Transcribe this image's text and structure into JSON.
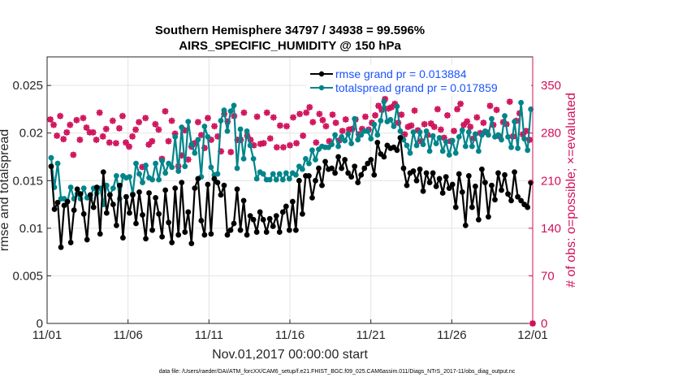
{
  "chart_data": {
    "type": "line",
    "title": "Southern Hemisphere 34797 / 34938 = 99.596%",
    "subtitle": "AIRS_SPECIFIC_HUMIDITY @ 150 hPa",
    "xlabel": "Nov.01,2017 00:00:00 start",
    "ylabel_left": "rmse and totalspread",
    "ylabel_right": "# of obs: o=possible; ×=evaluated",
    "footer": "data file: /Users/raeder/DAI/ATM_forcXX/CAM6_setup/f.e21.FHIST_BGC.f09_025.CAM6assim.011/Diags_NTrS_2017-11/obs_diag_output.nc",
    "x_ticks": [
      {
        "x": 0,
        "label": "11/01"
      },
      {
        "x": 5,
        "label": "11/06"
      },
      {
        "x": 10,
        "label": "11/11"
      },
      {
        "x": 15,
        "label": "11/16"
      },
      {
        "x": 20,
        "label": "11/21"
      },
      {
        "x": 25,
        "label": "11/26"
      },
      {
        "x": 30,
        "label": "12/01"
      }
    ],
    "y_ticks_left": [
      "0",
      "0.005",
      "0.01",
      "0.015",
      "0.02",
      "0.025"
    ],
    "y_ticks_right": [
      "0",
      "70",
      "140",
      "210",
      "280",
      "350"
    ],
    "xlim": [
      0,
      30
    ],
    "ylim_left": [
      0,
      0.028
    ],
    "ylim_right": [
      0,
      392
    ],
    "legend_location": "top-right",
    "colors": {
      "rmse": "#000000",
      "spread": "#00858a",
      "obs": "#d0105a",
      "legend_text": "#1a53ff"
    },
    "series": [
      {
        "name": "rmse grand pr = 0.013884",
        "axis": "left",
        "values": [
          0.0165,
          0.012,
          0.0127,
          0.008,
          0.0124,
          0.0128,
          0.0085,
          0.0119,
          0.0141,
          0.0136,
          0.0115,
          0.0088,
          0.0135,
          0.0122,
          0.0143,
          0.0094,
          0.0159,
          0.0116,
          0.0135,
          0.0125,
          0.0103,
          0.0145,
          0.009,
          0.0133,
          0.0116,
          0.0135,
          0.0105,
          0.0138,
          0.0114,
          0.0089,
          0.0137,
          0.0098,
          0.0132,
          0.0115,
          0.0091,
          0.014,
          0.0106,
          0.0085,
          0.0142,
          0.0093,
          0.0148,
          0.0096,
          0.0117,
          0.0084,
          0.0142,
          0.0152,
          0.0108,
          0.0093,
          0.0146,
          0.0094,
          0.0152,
          0.0148,
          0.0135,
          0.0145,
          0.0093,
          0.0098,
          0.0105,
          0.0141,
          0.0098,
          0.0129,
          0.0093,
          0.0113,
          0.0109,
          0.0096,
          0.0117,
          0.0109,
          0.0096,
          0.011,
          0.0102,
          0.0113,
          0.0096,
          0.0117,
          0.0123,
          0.0098,
          0.0128,
          0.0098,
          0.015,
          0.0115,
          0.0155,
          0.0155,
          0.0132,
          0.015,
          0.0163,
          0.0145,
          0.017,
          0.0162,
          0.0163,
          0.0158,
          0.0175,
          0.0163,
          0.0172,
          0.0158,
          0.0154,
          0.0165,
          0.0148,
          0.0156,
          0.0163,
          0.0168,
          0.0172,
          0.0156,
          0.019,
          0.0178,
          0.0175,
          0.0187,
          0.0184,
          0.0185,
          0.0182,
          0.0195,
          0.0163,
          0.0145,
          0.0158,
          0.016,
          0.015,
          0.0162,
          0.0139,
          0.0158,
          0.0148,
          0.0158,
          0.0144,
          0.0152,
          0.0137,
          0.0154,
          0.0142,
          0.0146,
          0.0122,
          0.0157,
          0.0138,
          0.0103,
          0.0155,
          0.0122,
          0.0144,
          0.0109,
          0.0162,
          0.0148,
          0.0112,
          0.0145,
          0.013,
          0.0158,
          0.014,
          0.0156,
          0.0136,
          0.0129,
          0.0159,
          0.0133,
          0.0129,
          0.0125,
          0.0122,
          0.0148
        ]
      },
      {
        "name": "totalspread grand pr = 0.017859",
        "axis": "left",
        "values": [
          0.0174,
          0.0143,
          0.0168,
          0.0131,
          0.0131,
          0.0128,
          0.0143,
          0.0131,
          0.0136,
          0.0131,
          0.0142,
          0.0132,
          0.0132,
          0.0142,
          0.0137,
          0.0142,
          0.0125,
          0.0145,
          0.0135,
          0.0142,
          0.0155,
          0.0131,
          0.0155,
          0.0153,
          0.0154,
          0.0136,
          0.0168,
          0.0157,
          0.0148,
          0.0166,
          0.0153,
          0.0151,
          0.0168,
          0.0151,
          0.0171,
          0.0158,
          0.0168,
          0.0164,
          0.0196,
          0.016,
          0.0206,
          0.0165,
          0.0212,
          0.0188,
          0.0179,
          0.0193,
          0.0154,
          0.0207,
          0.0196,
          0.0164,
          0.0156,
          0.0157,
          0.0213,
          0.0224,
          0.0202,
          0.0223,
          0.0229,
          0.0163,
          0.0204,
          0.0173,
          0.0202,
          0.0187,
          0.0173,
          0.0152,
          0.0159,
          0.0157,
          0.0151,
          0.0151,
          0.0157,
          0.0151,
          0.0157,
          0.0151,
          0.0158,
          0.0152,
          0.0158,
          0.0156,
          0.0165,
          0.0162,
          0.0173,
          0.0168,
          0.0182,
          0.0172,
          0.0183,
          0.0186,
          0.0185,
          0.0185,
          0.0188,
          0.0198,
          0.0186,
          0.0196,
          0.0192,
          0.0199,
          0.0189,
          0.0215,
          0.0193,
          0.0198,
          0.0202,
          0.0202,
          0.0194,
          0.0209,
          0.0198,
          0.0213,
          0.0233,
          0.0212,
          0.0214,
          0.0207,
          0.0228,
          0.0202,
          0.0193,
          0.0187,
          0.0179,
          0.0201,
          0.0187,
          0.0201,
          0.0188,
          0.0202,
          0.0181,
          0.0197,
          0.0189,
          0.0195,
          0.0181,
          0.0191,
          0.0177,
          0.0192,
          0.0179,
          0.0196,
          0.0203,
          0.0186,
          0.0201,
          0.0186,
          0.0199,
          0.0181,
          0.0198,
          0.0202,
          0.0198,
          0.0215,
          0.0196,
          0.0198,
          0.0193,
          0.0218,
          0.0196,
          0.0185,
          0.0212,
          0.0184,
          0.0232,
          0.0194,
          0.0182,
          0.0225
        ]
      },
      {
        "name": "obs possible",
        "axis": "right",
        "marker": "circle",
        "values": [
          300,
          292,
          276,
          305,
          271,
          281,
          292,
          248,
          299,
          270,
          302,
          288,
          281,
          281,
          270,
          310,
          275,
          286,
          266,
          298,
          265,
          287,
          305,
          266,
          260,
          275,
          285,
          296,
          230,
          302,
          263,
          268,
          293,
          285,
          242,
          312,
          268,
          298,
          279,
          231,
          247,
          284,
          241,
          260,
          265,
          296,
          277,
          258,
          302,
          270,
          290,
          275,
          253,
          308,
          297,
          252,
          305,
          270,
          270,
          310,
          276,
          270,
          262,
          304,
          264,
          265,
          310,
          272,
          303,
          259,
          291,
          259,
          290,
          262,
          303,
          265,
          308,
          276,
          310,
          318,
          296,
          266,
          308,
          299,
          290,
          268,
          307,
          295,
          269,
          283,
          300,
          285,
          286,
          300,
          278,
          286,
          304,
          285,
          295,
          306,
          320,
          314,
          330,
          316,
          318,
          323,
          295,
          307,
          278,
          289,
          291,
          313,
          284,
          268,
          293,
          277,
          294,
          289,
          315,
          285,
          273,
          306,
          268,
          283,
          315,
          323,
          292,
          297,
          289,
          272,
          303,
          280,
          295,
          281,
          320,
          292,
          314,
          275,
          296,
          293,
          326,
          275,
          298,
          309,
          278,
          283,
          270,
          0
        ]
      },
      {
        "name": "obs evaluated",
        "axis": "right",
        "marker": "cross",
        "values": [
          300,
          292,
          276,
          305,
          271,
          281,
          292,
          248,
          299,
          270,
          302,
          288,
          281,
          281,
          270,
          310,
          275,
          286,
          266,
          298,
          265,
          287,
          305,
          266,
          260,
          275,
          285,
          296,
          230,
          302,
          263,
          268,
          293,
          285,
          242,
          312,
          268,
          298,
          279,
          231,
          247,
          284,
          241,
          260,
          265,
          296,
          277,
          258,
          302,
          270,
          290,
          275,
          253,
          308,
          297,
          252,
          305,
          270,
          270,
          310,
          276,
          270,
          262,
          304,
          264,
          265,
          310,
          272,
          303,
          259,
          291,
          259,
          290,
          262,
          303,
          265,
          308,
          276,
          310,
          318,
          296,
          266,
          308,
          299,
          290,
          268,
          307,
          295,
          269,
          283,
          300,
          285,
          286,
          300,
          278,
          286,
          304,
          285,
          295,
          306,
          320,
          314,
          330,
          316,
          318,
          323,
          295,
          307,
          278,
          289,
          291,
          313,
          284,
          268,
          293,
          277,
          294,
          289,
          315,
          285,
          273,
          306,
          268,
          283,
          315,
          323,
          292,
          297,
          289,
          272,
          303,
          280,
          295,
          281,
          320,
          292,
          314,
          275,
          296,
          293,
          326,
          275,
          298,
          309,
          278,
          283,
          270,
          0
        ]
      }
    ]
  }
}
